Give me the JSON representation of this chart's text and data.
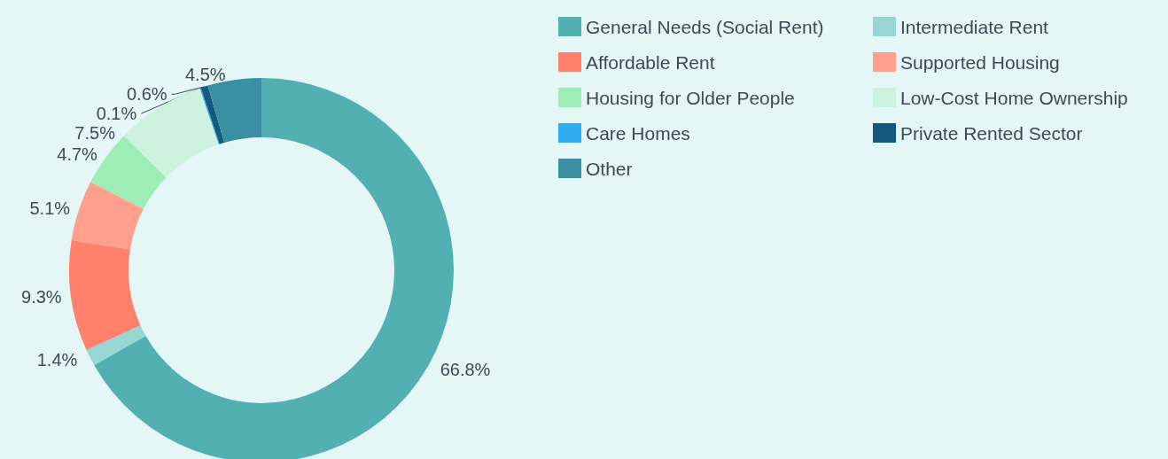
{
  "chart_data": {
    "type": "donut",
    "legend": "top right",
    "categories": [
      "General Needs (Social Rent)",
      "Intermediate Rent",
      "Affordable Rent",
      "Supported Housing",
      "Housing for Older People",
      "Low-Cost Home Ownership",
      "Care Homes",
      "Private Rented Sector",
      "Other"
    ],
    "values": [
      66.8,
      1.4,
      9.3,
      5.1,
      4.7,
      7.5,
      0.1,
      0.6,
      4.5
    ],
    "value_labels": [
      "66.8%",
      "1.4%",
      "9.3%",
      "5.1%",
      "4.7%",
      "7.5%",
      "0.1%",
      "0.6%",
      "4.5%"
    ],
    "colors": [
      "#52b0b3",
      "#98d6d3",
      "#ff806b",
      "#ffa08f",
      "#9eedb7",
      "#ccf2dd",
      "#2eaef0",
      "#145a80",
      "#3a8fa3"
    ]
  }
}
